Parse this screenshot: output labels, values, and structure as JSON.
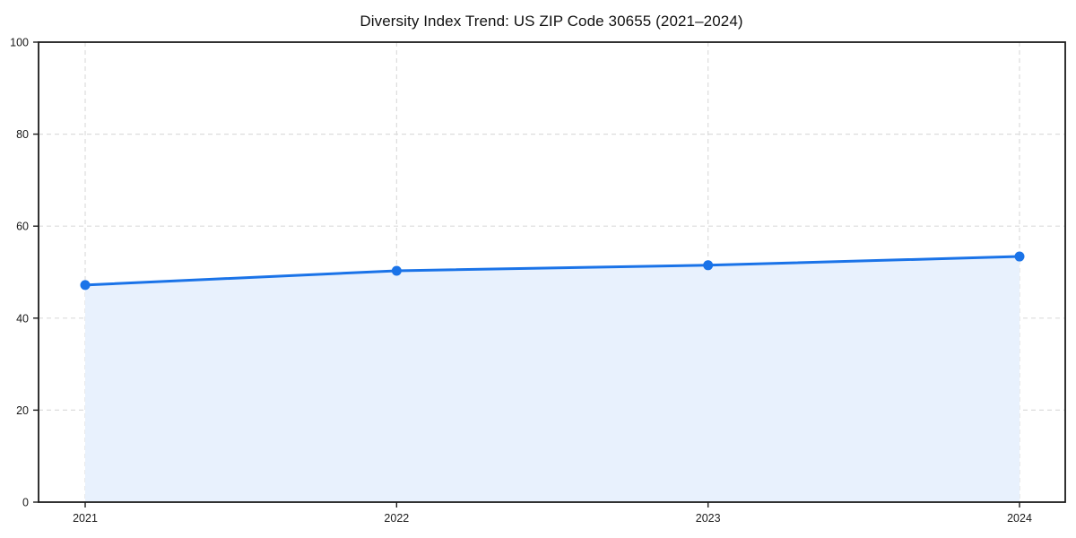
{
  "title": "Diversity Index Trend: US ZIP Code 30655 (2021–2024)",
  "chart_data": {
    "type": "area",
    "title": "Diversity Index Trend: US ZIP Code 30655 (2021–2024)",
    "categories": [
      "2021",
      "2022",
      "2023",
      "2024"
    ],
    "series": [
      {
        "name": "Diversity Index",
        "values": [
          47.2,
          50.3,
          51.5,
          53.4
        ]
      }
    ],
    "xlabel": "",
    "ylabel": "",
    "ylim": [
      0,
      100
    ],
    "yticks": [
      0,
      20,
      40,
      60,
      80,
      100
    ],
    "grid": "dashed-both-axes",
    "legend_position": "none",
    "marker": "circle",
    "colors": {
      "line": "#1a73e8",
      "marker": "#1a73e8",
      "area_fill": "#e8f1fd",
      "gridline": "#dcdcdc",
      "spine": "#1c1c1c",
      "tick_text": "#1a1a1a",
      "background": "#ffffff"
    }
  }
}
